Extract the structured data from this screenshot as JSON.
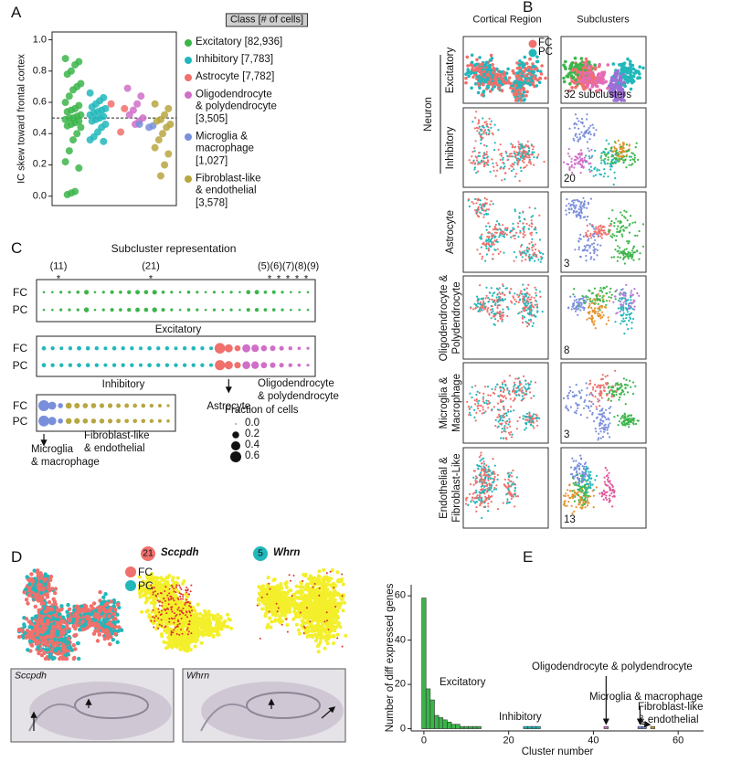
{
  "panel_labels": [
    "A",
    "B",
    "C",
    "D",
    "E"
  ],
  "regions": [
    "FC",
    "PC"
  ],
  "chart_data": [
    {
      "type": "strip",
      "ylabel": "IC skew toward frontal cortex",
      "ylim": [
        -0.06,
        1.05
      ],
      "yticks": [
        {
          "value": 0,
          "label": "0.0"
        },
        0.2,
        0.4,
        0.6,
        0.8,
        {
          "value": 1,
          "label": "1.0"
        }
      ],
      "hline": 0.5,
      "legend_title": "Class [# of cells]",
      "series": [
        {
          "name": "Excitatory [82,936]",
          "color": "#3bb54a",
          "values": [
            0.88,
            0.86,
            0.84,
            0.8,
            0.78,
            0.72,
            0.7,
            0.68,
            0.64,
            0.6,
            0.58,
            0.56,
            0.55,
            0.54,
            0.52,
            0.51,
            0.5,
            0.5,
            0.49,
            0.48,
            0.47,
            0.46,
            0.45,
            0.44,
            0.4,
            0.36,
            0.29,
            0.22,
            0.18,
            0.03,
            0.02,
            0.01
          ]
        },
        {
          "name": "Inhibitory [7,783]",
          "color": "#22b7bb",
          "values": [
            0.66,
            0.63,
            0.61,
            0.59,
            0.57,
            0.56,
            0.55,
            0.54,
            0.53,
            0.52,
            0.51,
            0.5,
            0.49,
            0.48,
            0.46,
            0.44,
            0.41,
            0.38,
            0.36,
            0.35
          ]
        },
        {
          "name": "Astrocyte [7,782]",
          "color": "#f0706c",
          "values": [
            0.59,
            0.56,
            0.41
          ]
        },
        {
          "name": "Oligodendrocyte\n& polydendrocyte\n[3,505]",
          "color": "#d06fc9",
          "values": [
            0.69,
            0.64,
            0.59,
            0.55,
            0.52,
            0.5,
            0.48,
            0.46
          ]
        },
        {
          "name": "Microglia &\nmacrophage\n[1,027]",
          "color": "#7a8fdb",
          "values": [
            0.46,
            0.45,
            0.44
          ]
        },
        {
          "name": "Fibroblast-like\n& endothelial\n[3,578]",
          "color": "#b8a640",
          "values": [
            0.59,
            0.56,
            0.52,
            0.49,
            0.48,
            0.46,
            0.44,
            0.4,
            0.36,
            0.31,
            0.27,
            0.2,
            0.13
          ]
        }
      ]
    },
    {
      "type": "dotplot",
      "title": "Subcluster representation",
      "rows": [
        "FC",
        "PC"
      ],
      "annotations": [
        "(11)",
        "(21)",
        "(5)(6)(7)(8)(9)"
      ],
      "star": "*",
      "size_legend": {
        "title": "Fraction of cells",
        "ticks": [
          {
            "value": 0,
            "label": "0.0"
          },
          0.2,
          0.4,
          0.6
        ]
      },
      "groups": [
        {
          "series": [
            {
              "name": "Excitatory",
              "color": "#3bb54a",
              "values": [
                [
                  0.01,
                  0.01,
                  0.02,
                  0.02,
                  0.03,
                  0.08,
                  0.01,
                  0.02,
                  0.04,
                  0.03,
                  0.05,
                  0.07,
                  0.06,
                  0.08,
                  0.03,
                  0.02,
                  0.01,
                  0.03,
                  0.02,
                  0.01,
                  0.02,
                  0.01,
                  0.02,
                  0.01,
                  0.06,
                  0.07,
                  0.03,
                  0.04,
                  0.02,
                  0.01,
                  0.01,
                  0.01
                ],
                [
                  0.01,
                  0.01,
                  0.02,
                  0.02,
                  0.02,
                  0.09,
                  0.01,
                  0.02,
                  0.04,
                  0.03,
                  0.05,
                  0.07,
                  0.06,
                  0.09,
                  0.04,
                  0.02,
                  0.01,
                  0.03,
                  0.02,
                  0.01,
                  0.02,
                  0.01,
                  0.02,
                  0.01,
                  0.04,
                  0.05,
                  0.03,
                  0.03,
                  0.02,
                  0.01,
                  0.01,
                  0.01
                ]
              ]
            }
          ]
        },
        {
          "series": [
            {
              "name": "Inhibitory",
              "color": "#22b7bb",
              "values": [
                [
                  0.06,
                  0.05,
                  0.04,
                  0.05,
                  0.07,
                  0.06,
                  0.05,
                  0.04,
                  0.06,
                  0.05,
                  0.05,
                  0.04,
                  0.06,
                  0.05,
                  0.05,
                  0.04,
                  0.05,
                  0.06,
                  0.05,
                  0.04
                ],
                [
                  0.06,
                  0.05,
                  0.05,
                  0.05,
                  0.06,
                  0.06,
                  0.05,
                  0.04,
                  0.05,
                  0.05,
                  0.05,
                  0.04,
                  0.06,
                  0.05,
                  0.05,
                  0.05,
                  0.05,
                  0.05,
                  0.05,
                  0.04
                ]
              ]
            },
            {
              "name": "Astrocyte",
              "color": "#f0706c",
              "values": [
                [
                  0.55,
                  0.3,
                  0.15
                ],
                [
                  0.5,
                  0.32,
                  0.18
                ]
              ]
            },
            {
              "name": "Oligodendrocyte\n& polydendrocyte",
              "color": "#d06fc9",
              "values": [
                [
                  0.3,
                  0.25,
                  0.15,
                  0.12,
                  0.08,
                  0.05,
                  0.03,
                  0.02
                ],
                [
                  0.28,
                  0.26,
                  0.16,
                  0.12,
                  0.08,
                  0.05,
                  0.03,
                  0.02
                ]
              ]
            }
          ]
        },
        {
          "series": [
            {
              "name": "Microglia\n& macrophage",
              "color": "#7a8fdb",
              "values": [
                [
                  0.6,
                  0.3,
                  0.1
                ],
                [
                  0.58,
                  0.32,
                  0.1
                ]
              ]
            },
            {
              "name": "Fibroblast-like\n& endothelial",
              "color": "#b8a640",
              "values": [
                [
                  0.15,
                  0.12,
                  0.1,
                  0.1,
                  0.08,
                  0.08,
                  0.07,
                  0.07,
                  0.06,
                  0.06,
                  0.05,
                  0.04,
                  0.02
                ],
                [
                  0.14,
                  0.13,
                  0.1,
                  0.09,
                  0.09,
                  0.08,
                  0.07,
                  0.06,
                  0.06,
                  0.06,
                  0.05,
                  0.04,
                  0.03
                ]
              ]
            }
          ]
        }
      ]
    },
    {
      "type": "bar",
      "xlabel": "Cluster number",
      "ylabel": "Number of diff expressed genes",
      "xlim": [
        -3,
        66
      ],
      "ylim": [
        -1,
        65
      ],
      "xticks": [
        0,
        20,
        40,
        60
      ],
      "yticks": [
        0,
        20,
        40,
        60
      ],
      "series": [
        {
          "name": "Excitatory",
          "color": "#3bb54a",
          "x": [
            0,
            1,
            2,
            3,
            4,
            5,
            6,
            7,
            8,
            9,
            10,
            11,
            12,
            13
          ],
          "values": [
            59,
            18,
            13,
            6,
            5,
            4,
            3,
            2,
            2,
            1,
            1,
            1,
            1,
            1
          ]
        },
        {
          "name": "Inhibitory",
          "color": "#22b7bb",
          "x": [
            24,
            25,
            26,
            27
          ],
          "values": [
            1,
            1,
            1,
            1
          ]
        },
        {
          "name": "Oligodendrocyte & polydendrocyte",
          "color": "#d06fc9",
          "x": [
            43
          ],
          "values": [
            1
          ]
        },
        {
          "name": "Microglia & macrophage",
          "color": "#7a8fdb",
          "x": [
            51,
            52
          ],
          "values": [
            1,
            1
          ]
        },
        {
          "name": "Fibroblast-like\n& endothelial",
          "color": "#b8a640",
          "x": [
            54
          ],
          "values": [
            1
          ]
        }
      ]
    }
  ],
  "panel_b": {
    "columns": [
      "Cortical Region",
      "Subclusters"
    ],
    "group": "Neuron",
    "rows": [
      "Excitatory",
      "Inhibitory",
      "Astrocyte",
      "Oligodendrocyte &\nPolydendrocyte",
      "Microglia &\nMacrophage",
      "Endothelial &\nFibroblast-Like"
    ],
    "counts": [
      "32 subclusters",
      "20",
      "3",
      "8",
      "3",
      "13"
    ]
  },
  "panel_d": {
    "genes": [
      {
        "cluster": 21,
        "gene": "Sccpdh"
      },
      {
        "cluster": 5,
        "gene": "Whrn"
      }
    ]
  }
}
